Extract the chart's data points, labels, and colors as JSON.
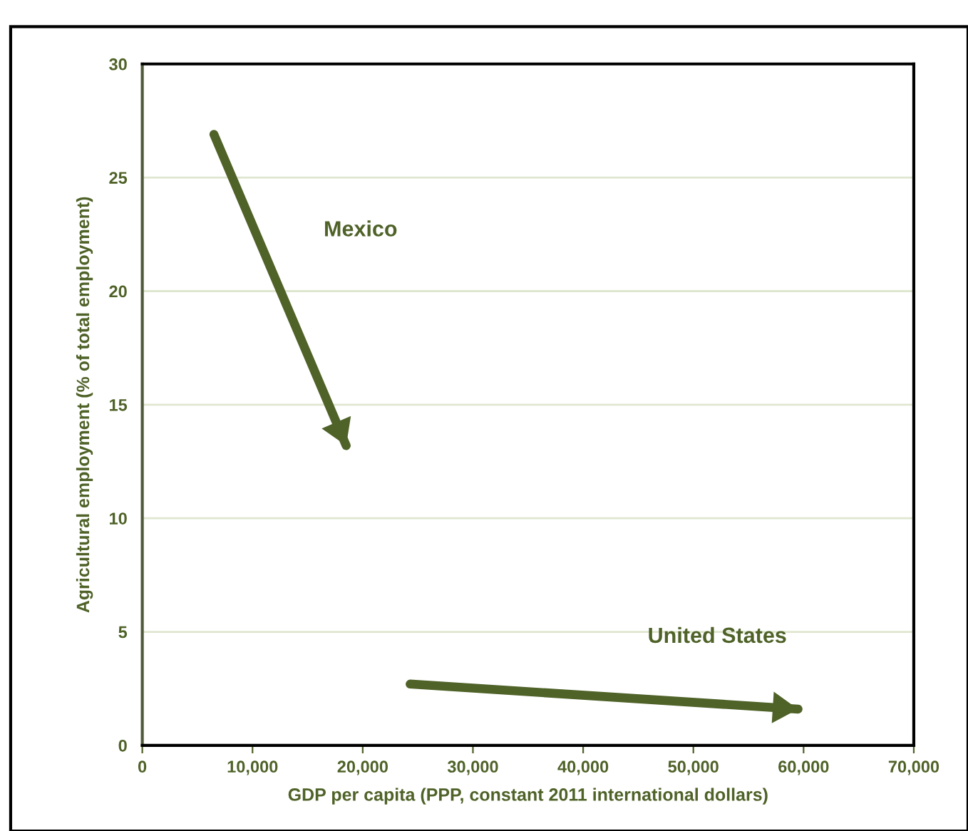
{
  "chart_data": {
    "type": "line",
    "xlabel": "GDP per capita (PPP, constant 2011 international dollars)",
    "ylabel": "Agricultural employment (% of total employment)",
    "series": [
      {
        "name": "Mexico",
        "color": "#4f6228",
        "x": [
          6500,
          18500
        ],
        "values": [
          26.9,
          13.2
        ]
      },
      {
        "name": "United States",
        "color": "#4f6228",
        "x": [
          24300,
          59500
        ],
        "values": [
          2.7,
          1.6
        ]
      }
    ],
    "xlim": [
      0,
      70000
    ],
    "xticks": [
      {
        "value": 0,
        "label": "0"
      },
      {
        "value": 10000,
        "label": "10,000"
      },
      {
        "value": 20000,
        "label": "20,000"
      },
      {
        "value": 30000,
        "label": "30,000"
      },
      {
        "value": 40000,
        "label": "40,000"
      },
      {
        "value": 50000,
        "label": "50,000"
      },
      {
        "value": 60000,
        "label": "60,000"
      },
      {
        "value": 70000,
        "label": "70,000"
      }
    ],
    "ylim": [
      0,
      30
    ],
    "yticks": [
      0,
      5,
      10,
      15,
      20,
      25,
      30
    ],
    "grid": "y",
    "legend": false,
    "marker": "none",
    "line_style": "solid"
  }
}
